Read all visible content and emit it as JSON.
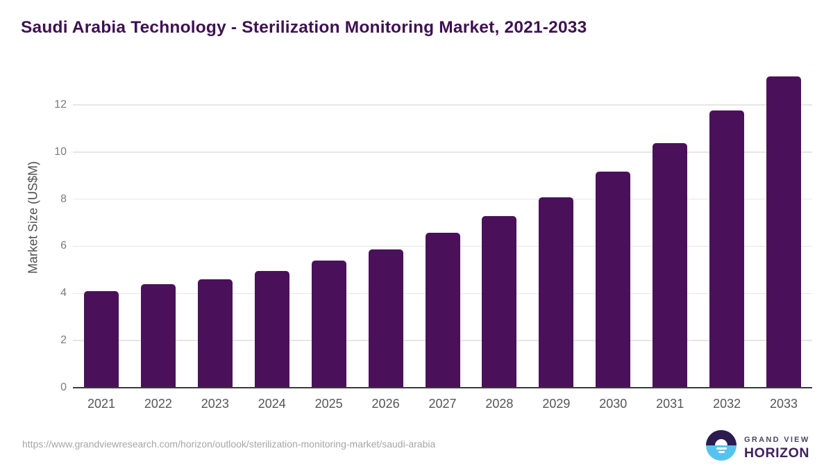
{
  "page": {
    "title": "Saudi Arabia Technology - Sterilization Monitoring Market, 2021-2033",
    "footer_url": "https://www.grandviewresearch.com/horizon/outlook/sterilization-monitoring-market/saudi-arabia"
  },
  "logo": {
    "top_text": "GRAND VIEW",
    "bottom_text": "HORIZON",
    "mark_top_color": "#2c1b4e",
    "mark_bottom_color": "#56c3ef"
  },
  "chart_data": {
    "type": "bar",
    "title": "Saudi Arabia Technology - Sterilization Monitoring Market, 2021-2033",
    "xlabel": "",
    "ylabel": "Market Size (US$M)",
    "categories": [
      "2021",
      "2022",
      "2023",
      "2024",
      "2025",
      "2026",
      "2027",
      "2028",
      "2029",
      "2030",
      "2031",
      "2032",
      "2033"
    ],
    "values": [
      4.09,
      4.38,
      4.6,
      4.95,
      5.39,
      5.87,
      6.57,
      7.27,
      8.07,
      9.17,
      10.38,
      11.76,
      13.2
    ],
    "yticks": [
      0,
      2,
      4,
      6,
      8,
      10,
      12
    ],
    "ylim": [
      0,
      13.5
    ],
    "grid": true,
    "legend": false,
    "bar_color": "#4a115a"
  },
  "colors": {
    "title": "#3e1151",
    "grid": "#e6e6e6",
    "axis": "#3a3a3a",
    "y_tick": "#7b7b7b",
    "x_tick": "#555555",
    "y_axis_title": "#4f4f4f",
    "url": "#a6a6a6",
    "logo_top_text": "#4b4563",
    "logo_bottom_text": "#3f2060"
  }
}
